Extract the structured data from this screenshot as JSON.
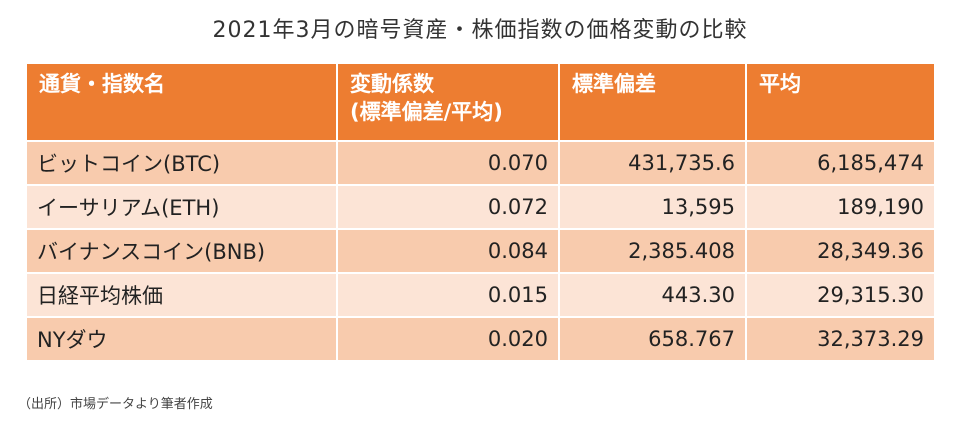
{
  "title": "2021年3月の暗号資産・株価指数の価格変動の比較",
  "table": {
    "headers": [
      "通貨・指数名",
      "変動係数\n(標準偏差/平均)",
      "標準偏差",
      "平均"
    ],
    "header_cv_line1": "変動係数",
    "header_cv_line2": "(標準偏差/平均)",
    "rows": [
      {
        "name": "ビットコイン(BTC)",
        "cv": "0.070",
        "std": "431,735.6",
        "mean": "6,185,474"
      },
      {
        "name": "イーサリアム(ETH)",
        "cv": "0.072",
        "std": "13,595",
        "mean": "189,190"
      },
      {
        "name": "バイナンスコイン(BNB)",
        "cv": "0.084",
        "std": "2,385.408",
        "mean": "28,349.36"
      },
      {
        "name": "日経平均株価",
        "cv": "0.015",
        "std": "443.30",
        "mean": "29,315.30"
      },
      {
        "name": "NYダウ",
        "cv": "0.020",
        "std": "658.767",
        "mean": "32,373.29"
      }
    ]
  },
  "source": "（出所）市場データより筆者作成",
  "colors": {
    "header_bg": "#ed7d31",
    "row_odd_bg": "#f8cbad",
    "row_even_bg": "#fce4d6"
  }
}
